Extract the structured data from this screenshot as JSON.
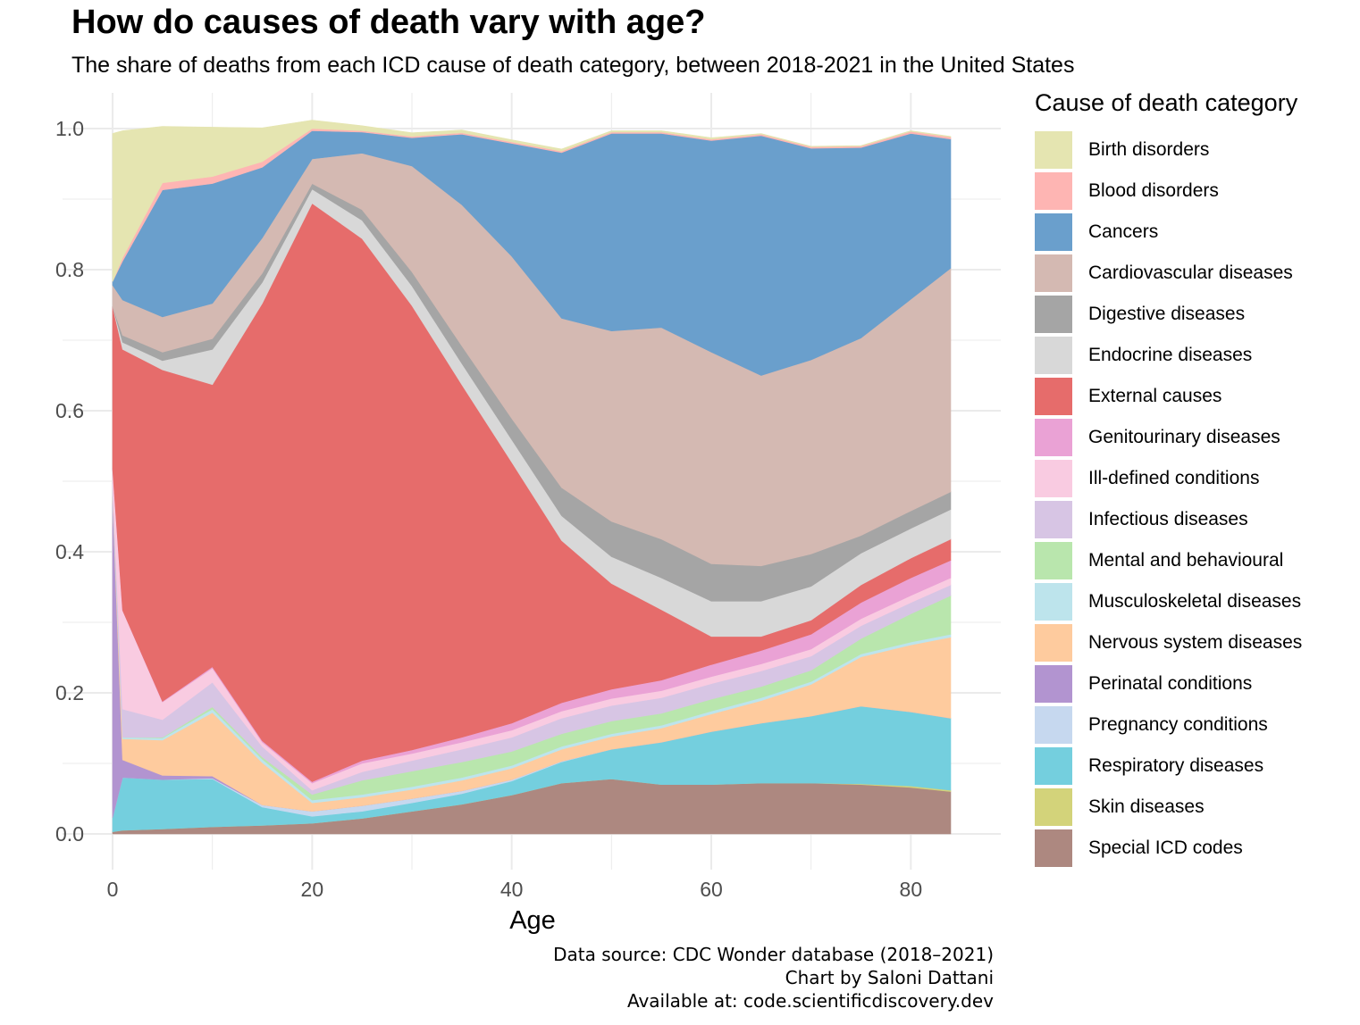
{
  "title": "How do causes of death vary with age?",
  "subtitle": "The share of deaths from each ICD cause of death category, between 2018-2021 in the United States",
  "caption": {
    "line1": "Data source: CDC Wonder database (2018–2021)",
    "line2": "Chart by Saloni Dattani",
    "line3": "Available at: code.scientificdiscovery.dev"
  },
  "chart_data": {
    "type": "area",
    "stacked": true,
    "title": "How do causes of death vary with age?",
    "xlabel": "Age",
    "ylabel": "",
    "xlim": [
      0,
      84
    ],
    "ylim": [
      0,
      1
    ],
    "xticks": [
      "0",
      "20",
      "40",
      "60",
      "80"
    ],
    "yticks": [
      "0.0",
      "0.2",
      "0.4",
      "0.6",
      "0.8",
      "1.0"
    ],
    "grid": true,
    "legend_title": "Cause of death category",
    "legend_position": "right",
    "x": [
      0,
      1,
      5,
      10,
      15,
      20,
      25,
      30,
      35,
      40,
      45,
      50,
      55,
      60,
      65,
      70,
      75,
      80,
      84
    ],
    "series": [
      {
        "name": "Special ICD codes",
        "color": "#ad8880",
        "values": [
          0.003,
          0.005,
          0.007,
          0.01,
          0.012,
          0.015,
          0.022,
          0.032,
          0.042,
          0.055,
          0.072,
          0.078,
          0.07,
          0.07,
          0.072,
          0.072,
          0.07,
          0.066,
          0.06
        ]
      },
      {
        "name": "Skin diseases",
        "color": "#d3d37a",
        "values": [
          0,
          0,
          0,
          0,
          0,
          0,
          0,
          0,
          0,
          0,
          0,
          0,
          0,
          0,
          0,
          0,
          0.001,
          0.002,
          0.002
        ]
      },
      {
        "name": "Respiratory diseases",
        "color": "#74cfde",
        "values": [
          0.02,
          0.075,
          0.07,
          0.068,
          0.026,
          0.01,
          0.01,
          0.012,
          0.015,
          0.02,
          0.03,
          0.042,
          0.06,
          0.075,
          0.085,
          0.095,
          0.11,
          0.105,
          0.102
        ]
      },
      {
        "name": "Pregnancy conditions",
        "color": "#c6d8ef",
        "values": [
          0,
          0,
          0,
          0.001,
          0.003,
          0.007,
          0.008,
          0.006,
          0.004,
          0.002,
          0.001,
          0,
          0,
          0,
          0,
          0,
          0,
          0,
          0
        ]
      },
      {
        "name": "Perinatal conditions",
        "color": "#b294d0",
        "values": [
          0.45,
          0.025,
          0.006,
          0.003,
          0,
          0,
          0,
          0,
          0,
          0,
          0,
          0,
          0,
          0,
          0,
          0,
          0,
          0,
          0
        ]
      },
      {
        "name": "Nervous system diseases",
        "color": "#fecb9e",
        "values": [
          0.005,
          0.03,
          0.05,
          0.09,
          0.06,
          0.012,
          0.012,
          0.013,
          0.015,
          0.016,
          0.017,
          0.018,
          0.02,
          0.025,
          0.032,
          0.045,
          0.07,
          0.095,
          0.115
        ]
      },
      {
        "name": "Musculoskeletal diseases",
        "color": "#bde4ec",
        "values": [
          0,
          0.002,
          0.003,
          0.005,
          0.005,
          0.004,
          0.004,
          0.004,
          0.004,
          0.004,
          0.004,
          0.004,
          0.004,
          0.004,
          0.004,
          0.004,
          0.004,
          0.004,
          0.004
        ]
      },
      {
        "name": "Mental and behavioural",
        "color": "#b9e6ad",
        "values": [
          0,
          0,
          0.001,
          0.003,
          0.003,
          0.008,
          0.02,
          0.022,
          0.022,
          0.02,
          0.018,
          0.018,
          0.017,
          0.017,
          0.016,
          0.016,
          0.022,
          0.04,
          0.055
        ]
      },
      {
        "name": "Infectious diseases",
        "color": "#d7c5e4",
        "values": [
          0.02,
          0.04,
          0.025,
          0.035,
          0.015,
          0.006,
          0.012,
          0.015,
          0.018,
          0.02,
          0.022,
          0.022,
          0.022,
          0.022,
          0.022,
          0.02,
          0.018,
          0.016,
          0.015
        ]
      },
      {
        "name": "Ill-defined conditions",
        "color": "#f9cbe1",
        "values": [
          0.02,
          0.14,
          0.025,
          0.02,
          0.006,
          0.01,
          0.012,
          0.01,
          0.01,
          0.01,
          0.01,
          0.01,
          0.01,
          0.01,
          0.01,
          0.01,
          0.01,
          0.01,
          0.01
        ]
      },
      {
        "name": "Genitourinary diseases",
        "color": "#eaa2d5",
        "values": [
          0,
          0,
          0.001,
          0.002,
          0.002,
          0.002,
          0.004,
          0.005,
          0.007,
          0.01,
          0.012,
          0.013,
          0.015,
          0.017,
          0.019,
          0.021,
          0.023,
          0.025,
          0.025
        ]
      },
      {
        "name": "External causes",
        "color": "#e66c6b",
        "values": [
          0.23,
          0.37,
          0.47,
          0.4,
          0.62,
          0.82,
          0.74,
          0.63,
          0.5,
          0.37,
          0.23,
          0.15,
          0.1,
          0.04,
          0.02,
          0.02,
          0.025,
          0.028,
          0.03
        ]
      },
      {
        "name": "Endocrine diseases",
        "color": "#d8d8d8",
        "values": [
          0,
          0.01,
          0.013,
          0.05,
          0.03,
          0.02,
          0.026,
          0.028,
          0.03,
          0.032,
          0.035,
          0.038,
          0.045,
          0.05,
          0.05,
          0.048,
          0.045,
          0.042,
          0.042
        ]
      },
      {
        "name": "Digestive diseases",
        "color": "#a5a5a5",
        "values": [
          0,
          0.01,
          0.012,
          0.015,
          0.013,
          0.008,
          0.015,
          0.02,
          0.025,
          0.03,
          0.04,
          0.05,
          0.055,
          0.053,
          0.05,
          0.046,
          0.025,
          0.025,
          0.025
        ]
      },
      {
        "name": "Cardiovascular diseases",
        "color": "#d4b9b2",
        "values": [
          0.03,
          0.05,
          0.05,
          0.05,
          0.05,
          0.035,
          0.08,
          0.15,
          0.2,
          0.23,
          0.24,
          0.27,
          0.3,
          0.3,
          0.27,
          0.275,
          0.28,
          0.3,
          0.317
        ]
      },
      {
        "name": "Cancers",
        "color": "#6a9fcc",
        "values": [
          0.005,
          0.055,
          0.18,
          0.17,
          0.1,
          0.04,
          0.03,
          0.04,
          0.1,
          0.16,
          0.235,
          0.28,
          0.275,
          0.3,
          0.34,
          0.3,
          0.27,
          0.235,
          0.183
        ]
      },
      {
        "name": "Blood disorders",
        "color": "#feb5b3",
        "values": [
          0,
          0.005,
          0.01,
          0.01,
          0.008,
          0.003,
          0.002,
          0.002,
          0.002,
          0.002,
          0.002,
          0.002,
          0.002,
          0.002,
          0.002,
          0.002,
          0.002,
          0.003,
          0.003
        ]
      },
      {
        "name": "Birth disorders",
        "color": "#e5e5b1",
        "values": [
          0.21,
          0.18,
          0.08,
          0.07,
          0.048,
          0.012,
          0.007,
          0.005,
          0.004,
          0.003,
          0.003,
          0.002,
          0.002,
          0.002,
          0.001,
          0.001,
          0.001,
          0.001,
          0.001
        ]
      }
    ]
  },
  "legend_items": [
    {
      "label": "Birth disorders",
      "color": "#e5e5b1"
    },
    {
      "label": "Blood disorders",
      "color": "#feb5b3"
    },
    {
      "label": "Cancers",
      "color": "#6a9fcc"
    },
    {
      "label": "Cardiovascular diseases",
      "color": "#d4b9b2"
    },
    {
      "label": "Digestive diseases",
      "color": "#a5a5a5"
    },
    {
      "label": "Endocrine diseases",
      "color": "#d8d8d8"
    },
    {
      "label": "External causes",
      "color": "#e66c6b"
    },
    {
      "label": "Genitourinary diseases",
      "color": "#eaa2d5"
    },
    {
      "label": "Ill-defined conditions",
      "color": "#f9cbe1"
    },
    {
      "label": "Infectious diseases",
      "color": "#d7c5e4"
    },
    {
      "label": "Mental and behavioural",
      "color": "#b9e6ad"
    },
    {
      "label": "Musculoskeletal diseases",
      "color": "#bde4ec"
    },
    {
      "label": "Nervous system diseases",
      "color": "#fecb9e"
    },
    {
      "label": "Perinatal conditions",
      "color": "#b294d0"
    },
    {
      "label": "Pregnancy conditions",
      "color": "#c6d8ef"
    },
    {
      "label": "Respiratory diseases",
      "color": "#74cfde"
    },
    {
      "label": "Skin diseases",
      "color": "#d3d37a"
    },
    {
      "label": "Special ICD codes",
      "color": "#ad8880"
    }
  ]
}
